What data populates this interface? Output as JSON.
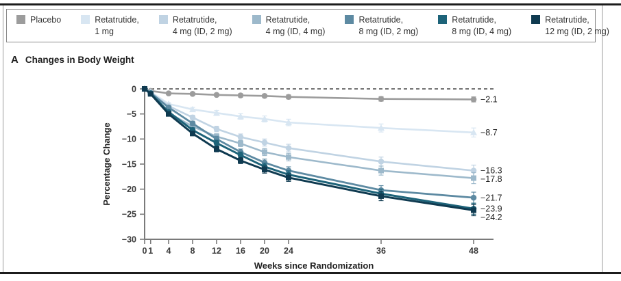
{
  "figure": {
    "panel_label": "A",
    "panel_title": "Changes in Body Weight"
  },
  "legend": {
    "items": [
      {
        "line1": "Placebo",
        "line2": "",
        "color": "#9c9c9c"
      },
      {
        "line1": "Retatrutide,",
        "line2": "1 mg",
        "color": "#d8e6f2"
      },
      {
        "line1": "Retatrutide,",
        "line2": "4 mg (ID, 2 mg)",
        "color": "#c0d3e3"
      },
      {
        "line1": "Retatrutide,",
        "line2": "4 mg (ID, 4 mg)",
        "color": "#9db9cb"
      },
      {
        "line1": "Retatrutide,",
        "line2": "8 mg (ID, 2 mg)",
        "color": "#5d8aa2"
      },
      {
        "line1": "Retatrutide,",
        "line2": "8 mg (ID, 4 mg)",
        "color": "#1d6379"
      },
      {
        "line1": "Retatrutide,",
        "line2": "12 mg (ID, 2 mg)",
        "color": "#0f3a50"
      }
    ]
  },
  "chart_data": {
    "type": "line",
    "title": "Changes in Body Weight",
    "xlabel": "Weeks since Randomization",
    "ylabel": "Percentage Change",
    "x": [
      0,
      1,
      4,
      8,
      12,
      16,
      20,
      24,
      36,
      48
    ],
    "x_tick_labels": [
      "0",
      "1",
      "4",
      "8",
      "12",
      "16",
      "20",
      "24",
      "36",
      "48"
    ],
    "ylim": [
      -30,
      0
    ],
    "y_ticks": [
      0,
      -5,
      -10,
      -15,
      -20,
      -25,
      -30
    ],
    "y_tick_labels": [
      "0",
      "−5",
      "−10",
      "−15",
      "−20",
      "−25",
      "−30"
    ],
    "zero_reference_line": true,
    "legend_position": "top",
    "axis_color": "#7a7a7a",
    "tick_label_color": "#3a3a3a",
    "series": [
      {
        "name": "Placebo",
        "color": "#9c9c9c",
        "marker": "circle",
        "lw": 2.6,
        "values": [
          0,
          -0.4,
          -0.9,
          -1.0,
          -1.2,
          -1.3,
          -1.4,
          -1.6,
          -2.0,
          -2.1
        ],
        "errors": [
          0,
          0.15,
          0.25,
          0.3,
          0.3,
          0.35,
          0.35,
          0.4,
          0.45,
          0.5
        ],
        "end_label": "−2.1"
      },
      {
        "name": "Retatrutide, 1 mg",
        "color": "#d8e6f2",
        "marker": "triangle",
        "lw": 2.6,
        "values": [
          0,
          -0.6,
          -3.0,
          -4.1,
          -4.8,
          -5.5,
          -6.0,
          -6.7,
          -7.8,
          -8.7
        ],
        "errors": [
          0,
          0.15,
          0.3,
          0.4,
          0.5,
          0.55,
          0.6,
          0.65,
          0.8,
          0.9
        ],
        "end_label": "−8.7"
      },
      {
        "name": "Retatrutide, 4 mg (ID, 2 mg)",
        "color": "#c0d3e3",
        "marker": "circle",
        "lw": 2.6,
        "values": [
          0,
          -0.7,
          -3.4,
          -5.7,
          -8.0,
          -9.6,
          -10.7,
          -11.8,
          -14.5,
          -16.3
        ],
        "errors": [
          0,
          0.15,
          0.3,
          0.45,
          0.55,
          0.6,
          0.7,
          0.75,
          0.9,
          1.1
        ],
        "end_label": "−16.3"
      },
      {
        "name": "Retatrutide, 4 mg (ID, 4 mg)",
        "color": "#9db9cb",
        "marker": "square",
        "lw": 2.6,
        "values": [
          0,
          -0.9,
          -4.8,
          -7.5,
          -9.5,
          -10.9,
          -12.6,
          -13.6,
          -16.3,
          -17.8
        ],
        "errors": [
          0,
          0.15,
          0.3,
          0.45,
          0.55,
          0.6,
          0.7,
          0.75,
          0.9,
          1.1
        ],
        "end_label": "−17.8"
      },
      {
        "name": "Retatrutide, 8 mg (ID, 2 mg)",
        "color": "#5d8aa2",
        "marker": "circle",
        "lw": 2.8,
        "values": [
          0,
          -0.8,
          -3.7,
          -6.9,
          -10.0,
          -12.6,
          -14.7,
          -16.3,
          -20.2,
          -21.7
        ],
        "errors": [
          0,
          0.15,
          0.3,
          0.45,
          0.55,
          0.6,
          0.7,
          0.75,
          0.9,
          1.1
        ],
        "end_label": "−21.7"
      },
      {
        "name": "Retatrutide, 8 mg (ID, 4 mg)",
        "color": "#1d6379",
        "marker": "circle",
        "lw": 3.0,
        "values": [
          0,
          -0.9,
          -4.6,
          -8.2,
          -10.8,
          -13.2,
          -15.5,
          -17.1,
          -20.9,
          -23.9
        ],
        "errors": [
          0,
          0.15,
          0.3,
          0.45,
          0.55,
          0.6,
          0.7,
          0.75,
          0.9,
          1.1
        ],
        "end_label": "−23.9"
      },
      {
        "name": "Retatrutide, 12 mg (ID, 2 mg)",
        "color": "#0f3a50",
        "marker": "square",
        "lw": 3.0,
        "values": [
          0,
          -1.0,
          -5.0,
          -8.9,
          -12.0,
          -14.3,
          -16.1,
          -17.7,
          -21.4,
          -24.2
        ],
        "errors": [
          0,
          0.15,
          0.3,
          0.45,
          0.55,
          0.6,
          0.7,
          0.75,
          0.9,
          1.1
        ],
        "end_label": "−24.2"
      }
    ]
  }
}
